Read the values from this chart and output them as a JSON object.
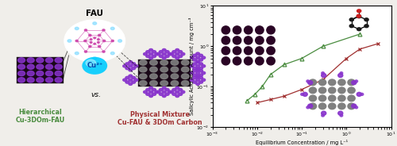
{
  "green_x": [
    0.006,
    0.009,
    0.013,
    0.02,
    0.04,
    0.1,
    0.3,
    2.0
  ],
  "green_y": [
    0.045,
    0.065,
    0.1,
    0.2,
    0.35,
    0.5,
    1.0,
    2.0
  ],
  "red_x": [
    0.01,
    0.02,
    0.04,
    0.1,
    0.3,
    1.0,
    2.0,
    5.0
  ],
  "red_y": [
    0.04,
    0.048,
    0.058,
    0.085,
    0.15,
    0.5,
    0.85,
    1.15
  ],
  "green_color": "#4a8c3f",
  "red_color": "#a03030",
  "ylabel": "Salicylic Acid Ads. Amount / mg cm⁻³",
  "xlabel": "Equilibrium Concentration / mg L⁻¹",
  "left_label_green": "Hierarchical\nCu-3DOm-FAU",
  "left_label_red": "Physical Mixture\nCu-FAU & 3DOm Carbon",
  "fau_label": "FAU",
  "cu_label": "Cu²⁺",
  "background_color": "#f0eeea",
  "fau_circle_color": "#cccccc",
  "fau_framework_color": "#cc44aa",
  "cu_sphere_color": "#00ccff",
  "cu_text_color": "#0044aa",
  "purple_color": "#8833cc",
  "dark_block_color": "#1a0818",
  "pore_color": "#3a1030",
  "gray_pore_color": "#808080"
}
